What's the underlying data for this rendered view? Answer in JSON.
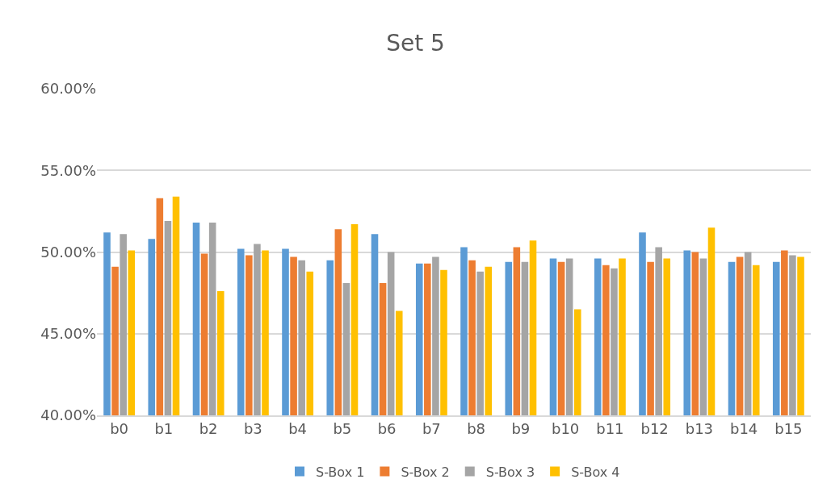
{
  "chart_data": {
    "type": "bar",
    "title": "Set 5",
    "categories": [
      "b0",
      "b1",
      "b2",
      "b3",
      "b4",
      "b5",
      "b6",
      "b7",
      "b8",
      "b9",
      "b10",
      "b11",
      "b12",
      "b13",
      "b14",
      "b15"
    ],
    "series": [
      {
        "name": "S-Box 1",
        "color": "#5b9bd5",
        "values": [
          51.2,
          50.8,
          51.8,
          50.2,
          50.2,
          49.5,
          51.1,
          49.3,
          50.3,
          49.4,
          49.6,
          49.6,
          51.2,
          50.1,
          49.4,
          49.4
        ]
      },
      {
        "name": "S-Box 2",
        "color": "#ed7d31",
        "values": [
          49.1,
          53.3,
          49.9,
          49.8,
          49.7,
          51.4,
          48.1,
          49.3,
          49.5,
          50.3,
          49.4,
          49.2,
          49.4,
          50.0,
          49.7,
          50.1
        ]
      },
      {
        "name": "S-Box 3",
        "color": "#a5a5a5",
        "values": [
          51.1,
          51.9,
          51.8,
          50.5,
          49.5,
          48.1,
          50.0,
          49.7,
          48.8,
          49.4,
          49.6,
          49.0,
          50.3,
          49.6,
          50.0,
          49.8
        ]
      },
      {
        "name": "S-Box 4",
        "color": "#ffc000",
        "values": [
          50.1,
          53.4,
          47.6,
          50.1,
          48.8,
          51.7,
          46.4,
          48.9,
          49.1,
          50.7,
          46.5,
          49.6,
          49.6,
          51.5,
          49.2,
          49.7
        ]
      }
    ],
    "ylim": [
      40,
      60
    ],
    "yticks": [
      {
        "value": 40,
        "label": "40.00%"
      },
      {
        "value": 45,
        "label": "45.00%"
      },
      {
        "value": 50,
        "label": "50.00%"
      },
      {
        "value": 55,
        "label": "55.00%"
      },
      {
        "value": 60,
        "label": "60.00%"
      }
    ],
    "grid": "y",
    "legend": "bottom"
  }
}
